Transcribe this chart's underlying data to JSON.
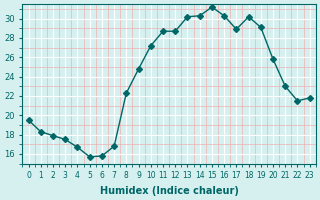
{
  "x": [
    0,
    1,
    2,
    3,
    4,
    5,
    6,
    7,
    8,
    9,
    10,
    11,
    12,
    13,
    14,
    15,
    16,
    17,
    18,
    19,
    20,
    21,
    22,
    23
  ],
  "y": [
    19.5,
    18.3,
    17.9,
    17.5,
    16.7,
    15.7,
    15.8,
    16.8,
    22.3,
    24.8,
    27.2,
    28.7,
    28.7,
    30.2,
    30.3,
    31.2,
    30.3,
    28.9,
    30.2,
    29.1,
    25.8,
    23.0,
    21.5,
    21.8
  ],
  "line_color": "#006666",
  "marker": "D",
  "marker_size": 3,
  "background_color": "#d6f0f0",
  "grid_color": "#ffffff",
  "grid_minor_color": "#f0b0b0",
  "xlabel": "Humidex (Indice chaleur)",
  "xlim": [
    -0.5,
    23.5
  ],
  "ylim": [
    15,
    31.5
  ],
  "yticks": [
    16,
    18,
    20,
    22,
    24,
    26,
    28,
    30
  ],
  "xticks": [
    0,
    1,
    2,
    3,
    4,
    5,
    6,
    7,
    8,
    9,
    10,
    11,
    12,
    13,
    14,
    15,
    16,
    17,
    18,
    19,
    20,
    21,
    22,
    23
  ]
}
